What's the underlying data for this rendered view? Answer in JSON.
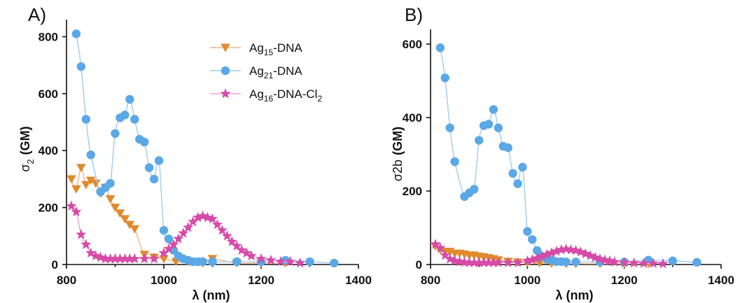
{
  "chart_data": [
    {
      "panel_label": "A)",
      "type": "line",
      "xlabel": "λ (nm)",
      "ylabel_main": "σ",
      "ylabel_sub": "2",
      "ylabel_unit": "(GM)",
      "xlim": [
        800,
        1400
      ],
      "ylim": [
        0,
        860
      ],
      "x_ticks": [
        800,
        1000,
        1200,
        1400
      ],
      "y_ticks": [
        0,
        200,
        400,
        600,
        800
      ],
      "legend": {
        "placement": "top-center",
        "entries": [
          {
            "base": "Ag",
            "sub": "15",
            "rest": "-DNA",
            "sub2": ""
          },
          {
            "base": "Ag",
            "sub": "21",
            "rest": "-DNA",
            "sub2": ""
          },
          {
            "base": "Ag",
            "sub": "16",
            "rest": "-DNA-Cl",
            "sub2": "2"
          }
        ]
      },
      "series": [
        {
          "name": "Ag15-DNA",
          "marker": "triangle-down",
          "color": "#e08a2e",
          "line_color": "#f0b58a",
          "x": [
            810,
            820,
            830,
            840,
            850,
            860,
            870,
            880,
            890,
            900,
            910,
            920,
            930,
            940,
            960,
            980,
            1000,
            1025,
            1050,
            1080,
            1100,
            1150,
            1200,
            1250
          ],
          "y": [
            300,
            265,
            340,
            280,
            295,
            285,
            250,
            270,
            230,
            200,
            180,
            160,
            140,
            125,
            35,
            25,
            20,
            10,
            10,
            5,
            20,
            5,
            5,
            5
          ]
        },
        {
          "name": "Ag21-DNA",
          "marker": "circle",
          "color": "#5aa8e6",
          "line_color": "#9fcbef",
          "x": [
            820,
            830,
            840,
            850,
            870,
            880,
            890,
            900,
            910,
            920,
            930,
            940,
            950,
            960,
            970,
            980,
            990,
            1000,
            1010,
            1020,
            1030,
            1040,
            1050,
            1060,
            1070,
            1080,
            1100,
            1150,
            1200,
            1250,
            1300,
            1350
          ],
          "y": [
            810,
            695,
            510,
            385,
            255,
            270,
            285,
            460,
            515,
            525,
            580,
            510,
            440,
            430,
            340,
            300,
            365,
            120,
            90,
            50,
            30,
            20,
            15,
            10,
            10,
            10,
            10,
            10,
            10,
            15,
            10,
            5
          ]
        },
        {
          "name": "Ag16-DNA-Cl2",
          "marker": "star",
          "color": "#d64aa8",
          "line_color": "#eba6d1",
          "x": [
            810,
            820,
            830,
            840,
            850,
            860,
            870,
            880,
            890,
            900,
            910,
            920,
            930,
            940,
            960,
            980,
            1000,
            1010,
            1020,
            1030,
            1040,
            1050,
            1060,
            1070,
            1080,
            1090,
            1100,
            1110,
            1120,
            1130,
            1140,
            1150,
            1160,
            1170,
            1180,
            1200,
            1220,
            1240,
            1260,
            1280
          ],
          "y": [
            205,
            185,
            105,
            70,
            40,
            30,
            25,
            20,
            20,
            20,
            20,
            20,
            20,
            20,
            20,
            20,
            40,
            55,
            70,
            90,
            110,
            130,
            150,
            165,
            170,
            165,
            160,
            140,
            120,
            100,
            80,
            65,
            50,
            40,
            30,
            20,
            15,
            10,
            10,
            5
          ]
        }
      ]
    },
    {
      "panel_label": "B)",
      "type": "line",
      "xlabel": "λ (nm)",
      "ylabel_main": "σ2b",
      "ylabel_sub": "",
      "ylabel_unit": "(GM)",
      "xlim": [
        800,
        1400
      ],
      "ylim": [
        0,
        640
      ],
      "x_ticks": [
        800,
        1000,
        1200,
        1400
      ],
      "y_ticks": [
        0,
        200,
        400,
        600
      ],
      "series": [
        {
          "name": "Ag15-DNA",
          "marker": "triangle-down",
          "color": "#e08a2e",
          "line_color": "#f0b58a",
          "x": [
            810,
            820,
            830,
            840,
            850,
            860,
            870,
            880,
            890,
            900,
            910,
            920,
            930,
            940,
            960,
            980,
            1000,
            1025,
            1050,
            1080,
            1100,
            1150,
            1200,
            1250
          ],
          "y": [
            50,
            40,
            35,
            35,
            30,
            30,
            28,
            25,
            25,
            22,
            20,
            18,
            15,
            12,
            8,
            6,
            5,
            4,
            3,
            2,
            2,
            2,
            2,
            2
          ]
        },
        {
          "name": "Ag21-DNA",
          "marker": "circle",
          "color": "#5aa8e6",
          "line_color": "#9fcbef",
          "x": [
            820,
            830,
            840,
            850,
            870,
            880,
            890,
            900,
            910,
            920,
            930,
            940,
            950,
            960,
            970,
            980,
            990,
            1000,
            1010,
            1020,
            1030,
            1040,
            1050,
            1060,
            1070,
            1080,
            1100,
            1150,
            1200,
            1250,
            1300,
            1350
          ],
          "y": [
            590,
            508,
            372,
            280,
            185,
            195,
            205,
            338,
            378,
            382,
            422,
            372,
            322,
            318,
            248,
            220,
            265,
            90,
            68,
            38,
            22,
            15,
            12,
            8,
            8,
            7,
            7,
            7,
            7,
            12,
            10,
            6
          ]
        },
        {
          "name": "Ag16-DNA-Cl2",
          "marker": "star",
          "color": "#d64aa8",
          "line_color": "#eba6d1",
          "x": [
            810,
            820,
            830,
            840,
            850,
            860,
            870,
            880,
            890,
            900,
            910,
            920,
            930,
            940,
            960,
            980,
            1000,
            1010,
            1020,
            1030,
            1040,
            1050,
            1060,
            1070,
            1080,
            1090,
            1100,
            1110,
            1120,
            1130,
            1140,
            1150,
            1160,
            1170,
            1180,
            1200,
            1220,
            1240,
            1260,
            1280
          ],
          "y": [
            55,
            45,
            25,
            15,
            10,
            8,
            6,
            5,
            5,
            5,
            5,
            5,
            5,
            5,
            5,
            5,
            10,
            13,
            17,
            22,
            27,
            32,
            36,
            40,
            42,
            40,
            38,
            34,
            29,
            24,
            19,
            15,
            12,
            10,
            7,
            5,
            4,
            3,
            3,
            2
          ]
        }
      ]
    }
  ]
}
